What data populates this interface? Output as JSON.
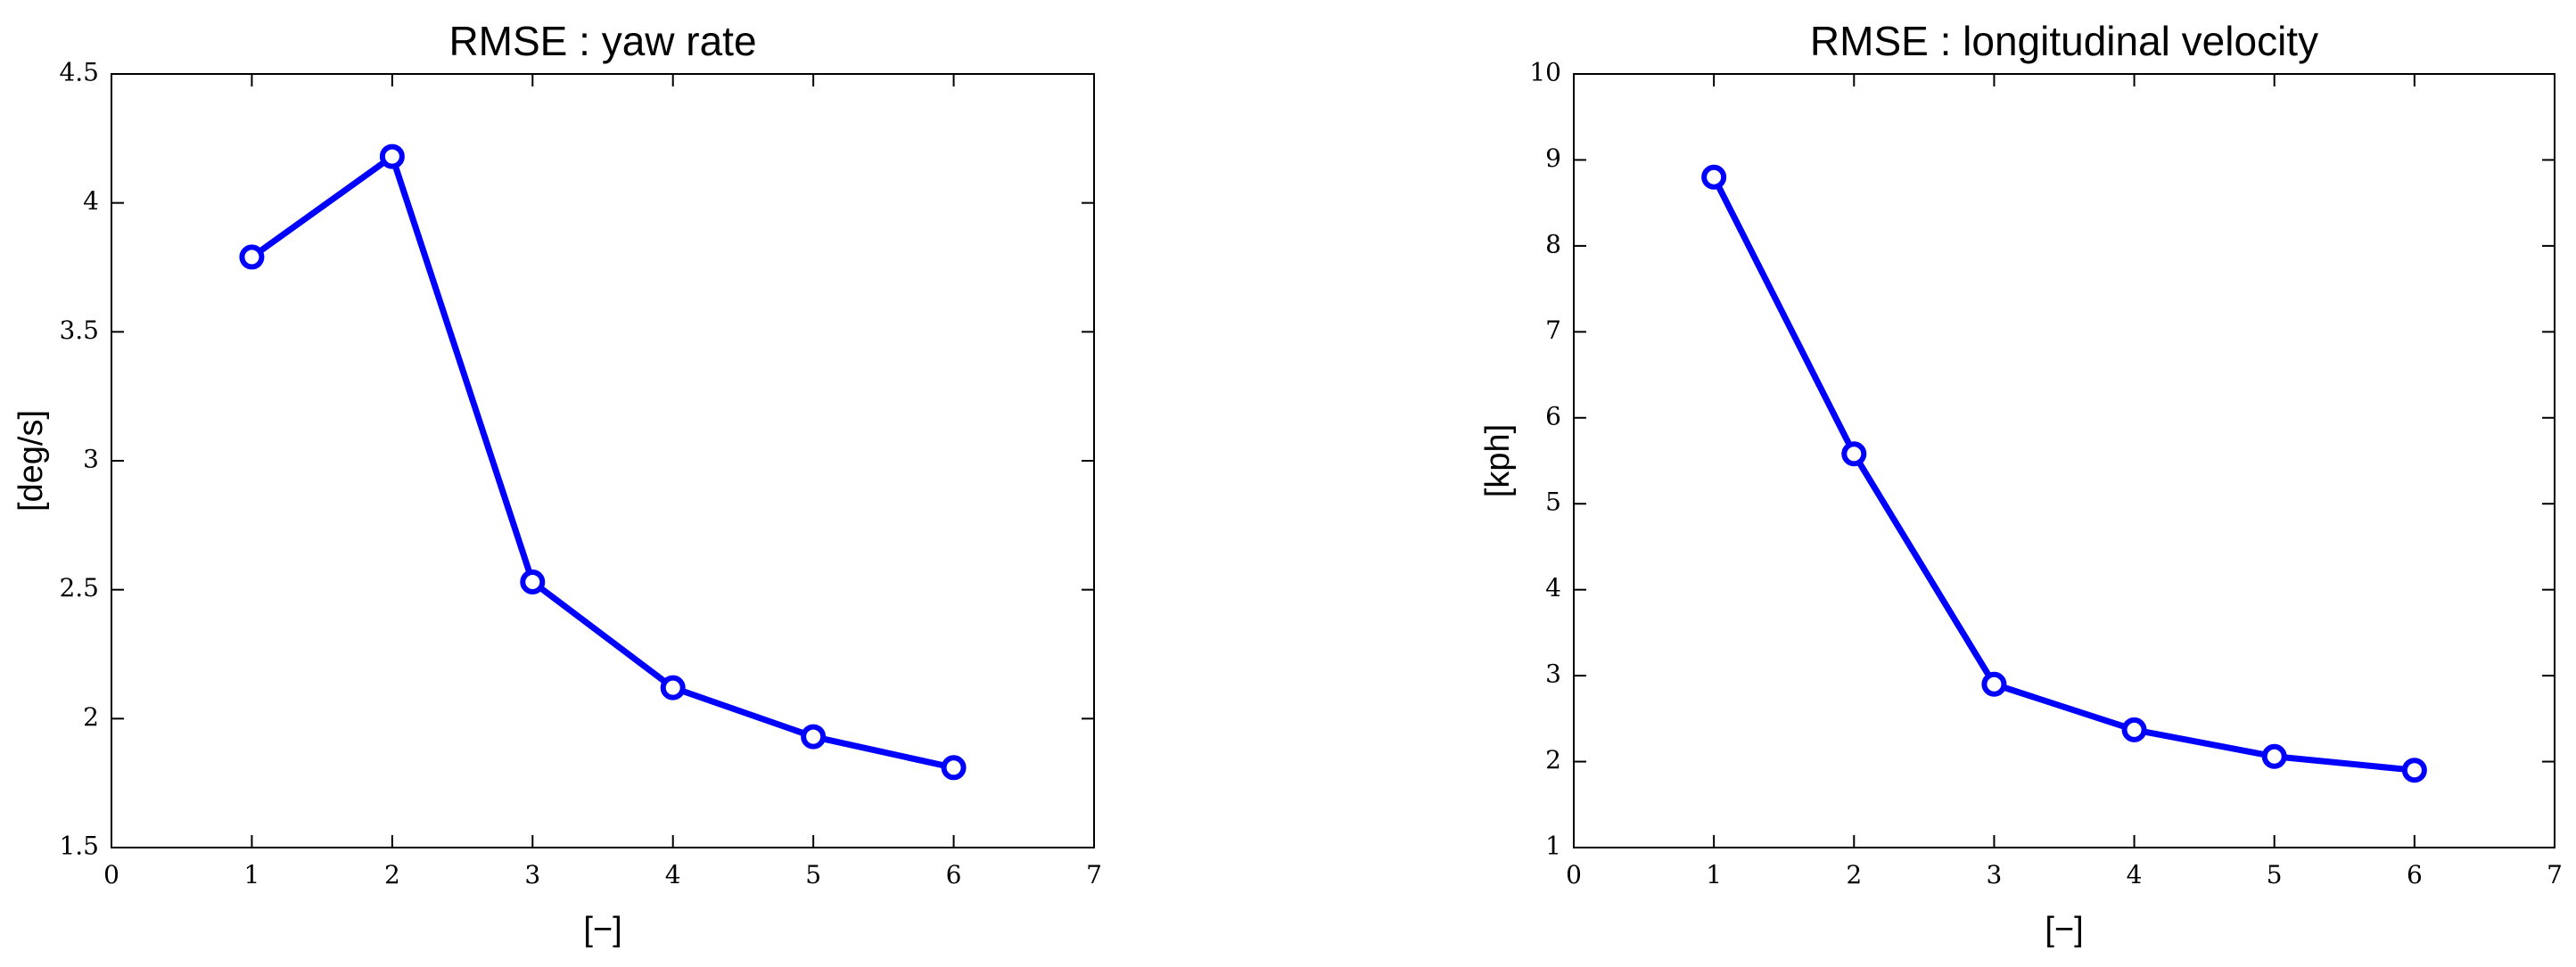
{
  "chart_data": [
    {
      "type": "line",
      "title": "RMSE : yaw rate",
      "xlabel": "[−]",
      "ylabel": "[deg/s]",
      "x": [
        1,
        2,
        3,
        4,
        5,
        6
      ],
      "values": [
        3.79,
        4.18,
        2.53,
        2.12,
        1.93,
        1.81
      ],
      "color": "#0000ff",
      "xlim": [
        0,
        7
      ],
      "xticks": [
        0,
        1,
        2,
        3,
        4,
        5,
        6,
        7
      ],
      "ylim": [
        1.5,
        4.5
      ],
      "yticks": [
        1.5,
        2,
        2.5,
        3,
        3.5,
        4,
        4.5
      ],
      "grid": false
    },
    {
      "type": "line",
      "title": "RMSE : longitudinal velocity",
      "xlabel": "[−]",
      "ylabel": "[kph]",
      "x": [
        1,
        2,
        3,
        4,
        5,
        6
      ],
      "values": [
        8.8,
        5.58,
        2.9,
        2.37,
        2.06,
        1.9
      ],
      "color": "#0000ff",
      "xlim": [
        0,
        7
      ],
      "xticks": [
        0,
        1,
        2,
        3,
        4,
        5,
        6,
        7
      ],
      "ylim": [
        1,
        10
      ],
      "yticks": [
        1,
        2,
        3,
        4,
        5,
        6,
        7,
        8,
        9,
        10
      ],
      "grid": false
    }
  ]
}
